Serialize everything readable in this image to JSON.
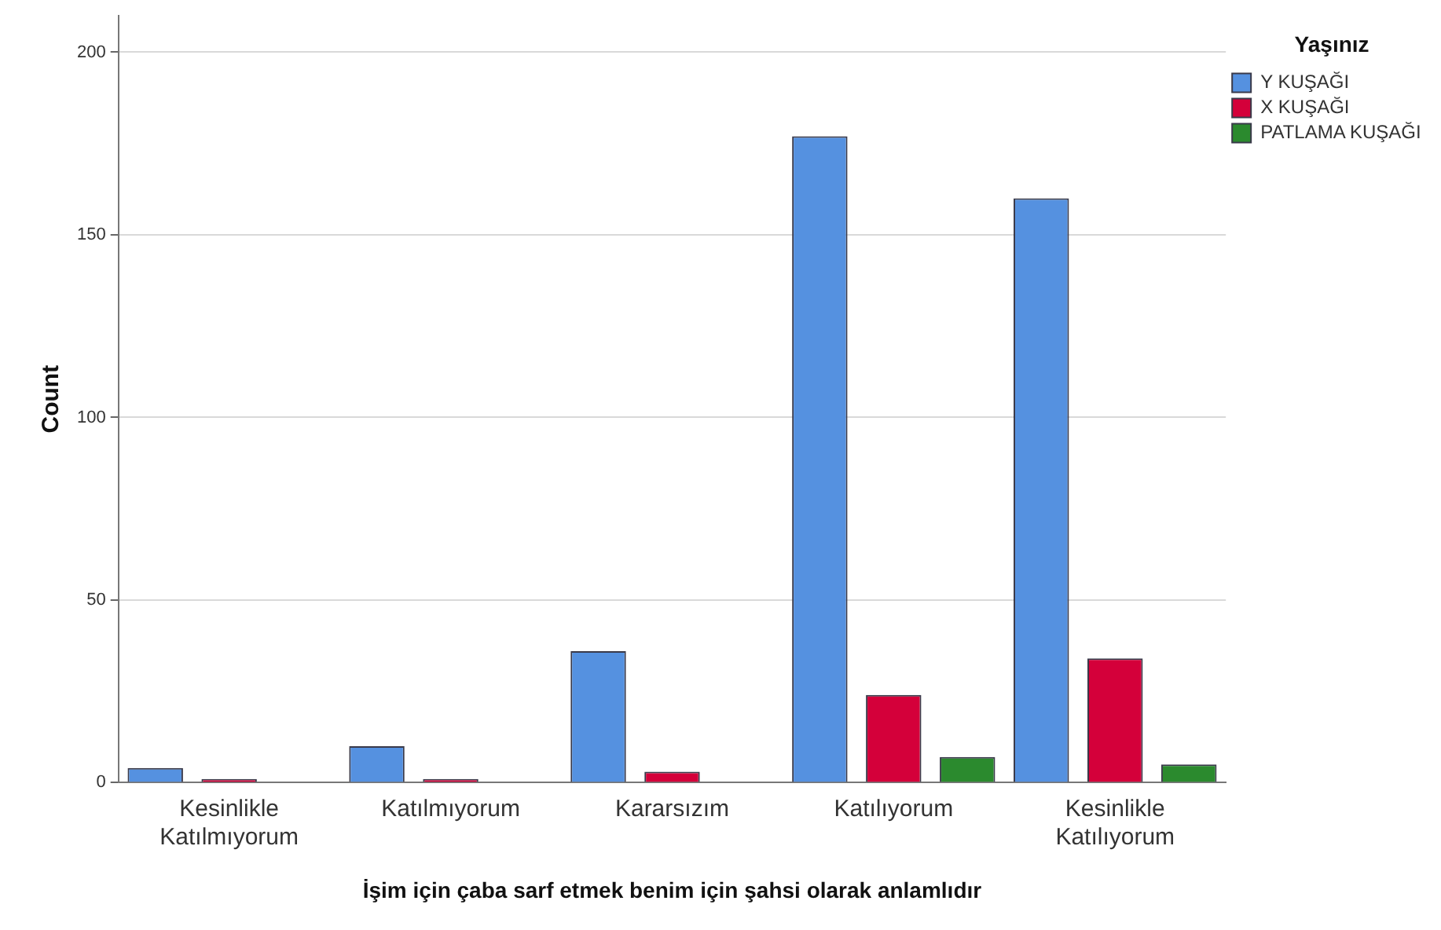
{
  "chart_data": {
    "type": "bar",
    "xlabel": "İşim için çaba sarf etmek benim için şahsi olarak anlamlıdır",
    "ylabel": "Count",
    "legend_title": "Yaşınız",
    "categories": [
      "Kesinlikle Katılmıyorum",
      "Katılmıyorum",
      "Kararsızım",
      "Katılıyorum",
      "Kesinlikle Katılıyorum"
    ],
    "series": [
      {
        "name": "Y KUŞAĞI",
        "color": "#5591e0",
        "values": [
          4,
          10,
          36,
          177,
          160
        ]
      },
      {
        "name": "X KUŞAĞI",
        "color": "#d4003a",
        "values": [
          1,
          1,
          3,
          24,
          34
        ]
      },
      {
        "name": "PATLAMA KUŞAĞI",
        "color": "#2b8a2e",
        "values": [
          0,
          0,
          0,
          7,
          5
        ]
      }
    ],
    "ylim": [
      0,
      210
    ],
    "yticks": [
      0,
      50,
      100,
      150,
      200
    ],
    "grid": "y",
    "legend": "top right"
  }
}
